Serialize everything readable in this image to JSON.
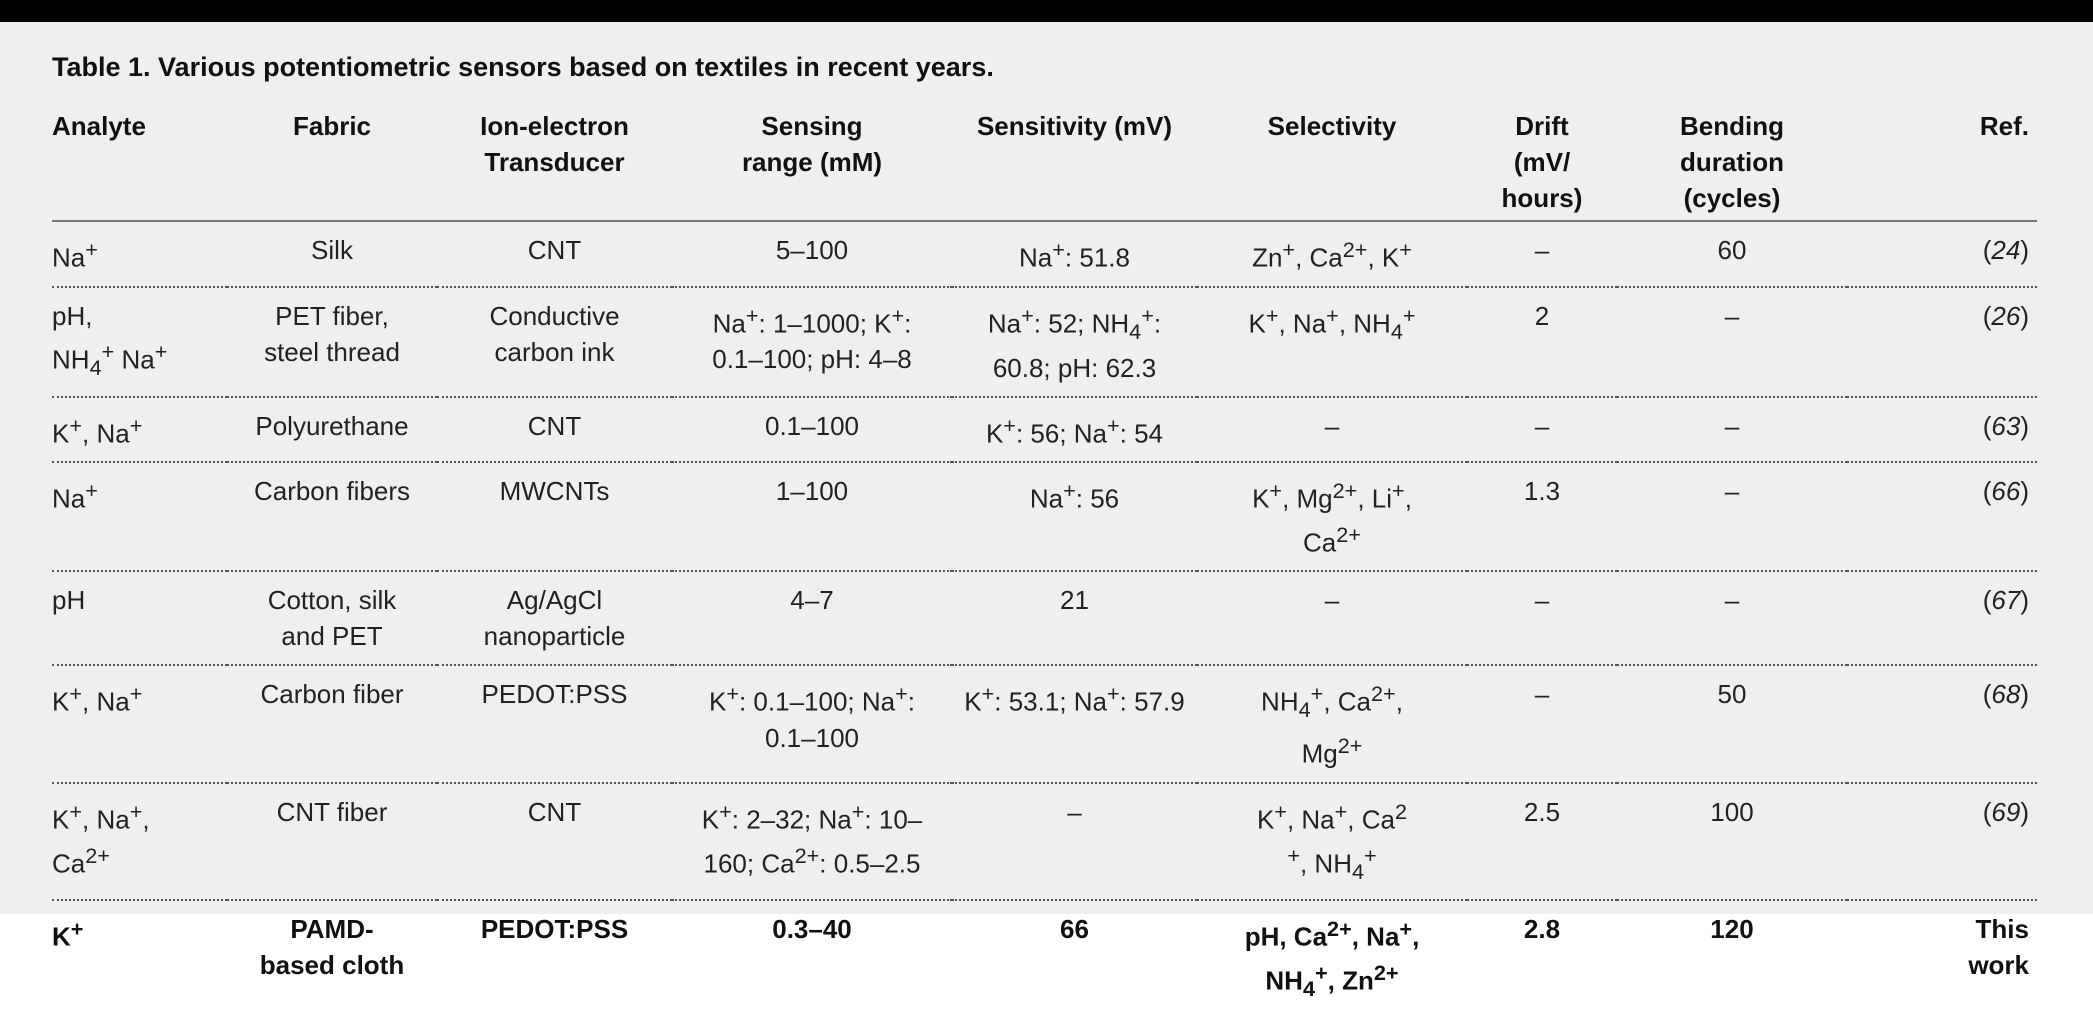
{
  "caption": "Table 1. Various potentiometric sensors based on textiles in recent years.",
  "columns": [
    {
      "line1": "Analyte",
      "line2": "",
      "line3": ""
    },
    {
      "line1": "Fabric",
      "line2": "",
      "line3": ""
    },
    {
      "line1": "Ion-electron",
      "line2": "Transducer",
      "line3": ""
    },
    {
      "line1": "Sensing",
      "line2": "range (mM)",
      "line3": ""
    },
    {
      "line1": "Sensitivity (mV)",
      "line2": "",
      "line3": ""
    },
    {
      "line1": "Selectivity",
      "line2": "",
      "line3": ""
    },
    {
      "line1": "Drift",
      "line2": "(mV/",
      "line3": "hours)"
    },
    {
      "line1": "Bending",
      "line2": "duration",
      "line3": "(cycles)"
    },
    {
      "line1": "Ref.",
      "line2": "",
      "line3": ""
    }
  ],
  "rows": [
    {
      "analyte": "Na<sup>+</sup>",
      "fabric": "Silk",
      "transducer": "CNT",
      "range": "5–100",
      "sensitivity": "Na<sup>+</sup>: 51.8",
      "selectivity": "Zn<sup>+</sup>, Ca<sup>2+</sup>, K<sup>+</sup>",
      "drift": "–",
      "bending": "60",
      "ref": "24"
    },
    {
      "analyte": "pH,<br>NH<sub>4</sub><sup>+</sup> Na<sup>+</sup>",
      "fabric": "PET fiber,<br>steel thread",
      "transducer": "Conductive<br>carbon ink",
      "range": "Na<sup>+</sup>: 1–1000; K<sup>+</sup>:<br>0.1–100; pH: 4–8",
      "sensitivity": "Na<sup>+</sup>: 52; NH<sub>4</sub><sup>+</sup>:<br>60.8; pH: 62.3",
      "selectivity": "K<sup>+</sup>, Na<sup>+</sup>, NH<sub>4</sub><sup>+</sup>",
      "drift": "2",
      "bending": "–",
      "ref": "26"
    },
    {
      "analyte": "K<sup>+</sup>, Na<sup>+</sup>",
      "fabric": "Polyurethane",
      "transducer": "CNT",
      "range": "0.1–100",
      "sensitivity": "K<sup>+</sup>: 56; Na<sup>+</sup>: 54",
      "selectivity": "–",
      "drift": "–",
      "bending": "–",
      "ref": "63"
    },
    {
      "analyte": "Na<sup>+</sup>",
      "fabric": "Carbon fibers",
      "transducer": "MWCNTs",
      "range": "1–100",
      "sensitivity": "Na<sup>+</sup>: 56",
      "selectivity": "K<sup>+</sup>, Mg<sup>2+</sup>, Li<sup>+</sup>,<br>Ca<sup>2+</sup>",
      "drift": "1.3",
      "bending": "–",
      "ref": "66"
    },
    {
      "analyte": "pH",
      "fabric": "Cotton, silk<br>and PET",
      "transducer": "Ag/AgCl<br>nanoparticle",
      "range": "4–7",
      "sensitivity": "21",
      "selectivity": "–",
      "drift": "–",
      "bending": "–",
      "ref": "67"
    },
    {
      "analyte": "K<sup>+</sup>, Na<sup>+</sup>",
      "fabric": "Carbon fiber",
      "transducer": "PEDOT:PSS",
      "range": "K<sup>+</sup>: 0.1–100; Na<sup>+</sup>:<br>0.1–100",
      "sensitivity": "K<sup>+</sup>: 53.1; Na<sup>+</sup>: 57.9",
      "selectivity": "NH<sub>4</sub><sup>+</sup>, Ca<sup>2+</sup>,<br>Mg<sup>2+</sup>",
      "drift": "–",
      "bending": "50",
      "ref": "68"
    },
    {
      "analyte": "K<sup>+</sup>, Na<sup>+</sup>,<br>Ca<sup>2+</sup>",
      "fabric": "CNT fiber",
      "transducer": "CNT",
      "range": "K<sup>+</sup>: 2–32; Na<sup>+</sup>: 10–<br>160; Ca<sup>2+</sup>: 0.5–2.5",
      "sensitivity": "–",
      "selectivity": "K<sup>+</sup>, Na<sup>+</sup>, Ca<sup>2</sup><br><sup>+</sup>, NH<sub>4</sub><sup>+</sup>",
      "drift": "2.5",
      "bending": "100",
      "ref": "69"
    },
    {
      "analyte": "K<sup>+</sup>",
      "fabric": "PAMD-<br>based cloth",
      "transducer": "PEDOT:PSS",
      "range": "0.3–40",
      "sensitivity": "66",
      "selectivity": "pH, Ca<sup>2+</sup>, Na<sup>+</sup>,<br>NH<sub>4</sub><sup>+</sup>, Zn<sup>2+</sup>",
      "drift": "2.8",
      "bending": "120",
      "ref": "This<br>work",
      "highlight": true
    }
  ]
}
